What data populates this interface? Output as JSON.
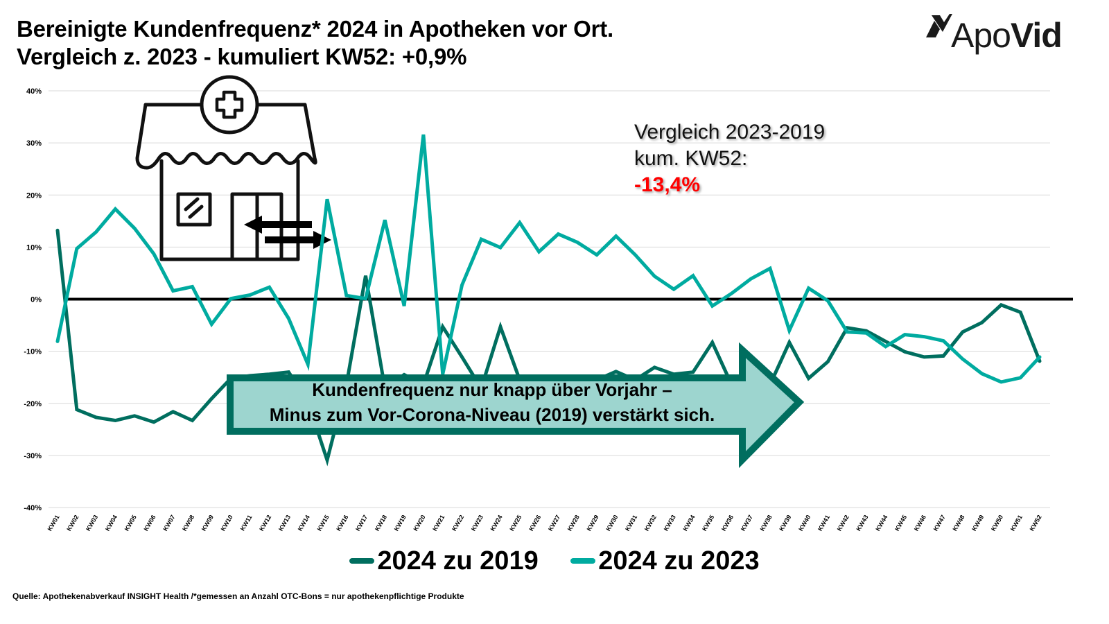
{
  "header": {
    "title_line1": "Bereinigte Kundenfrequenz* 2024 in Apotheken vor Ort.",
    "title_line2": "Vergleich z. 2023 - kumuliert KW52: +0,9%"
  },
  "logo": {
    "text_regular": "Apo",
    "text_bold": "Vid",
    "icon": "apovid-logo-icon"
  },
  "annotation": {
    "line1": "Vergleich 2023-2019",
    "line2": "kum. KW52:",
    "value": "-13,4%",
    "value_color": "#ff0000"
  },
  "banner": {
    "line1": "Kundenfrequenz nur knapp über Vorjahr –",
    "line2": "Minus zum Vor-Corona-Niveau (2019) verstärkt sich.",
    "fill_color": "#9dd5cf",
    "border_color": "#006e5f"
  },
  "illustration": {
    "icon": "pharmacy-storefront-icon"
  },
  "footer": {
    "source": "Quelle: Apothekenabverkauf INSIGHT Health /*gemessen an Anzahl OTC-Bons = nur apothekenpflichtige Produkte"
  },
  "chart_data": {
    "type": "line",
    "title": "Bereinigte Kundenfrequenz* 2024 in Apotheken vor Ort.",
    "xlabel": "",
    "ylabel": "",
    "ylim": [
      -40,
      40
    ],
    "yticks": [
      40,
      30,
      20,
      10,
      0,
      -10,
      -20,
      -30,
      -40
    ],
    "ytick_labels": [
      "40%",
      "30%",
      "20%",
      "10%",
      "0%",
      "-10%",
      "-20%",
      "-30%",
      "-40%"
    ],
    "grid": true,
    "legend_position": "bottom",
    "x": [
      "KW01",
      "KW02",
      "KW03",
      "KW04",
      "KW05",
      "KW06",
      "KW07",
      "KW08",
      "KW09",
      "KW10",
      "KW11",
      "KW12",
      "KW13",
      "KW14",
      "KW15",
      "KW16",
      "KW17",
      "KW18",
      "KW19",
      "KW20",
      "KW21",
      "KW22",
      "KW23",
      "KW24",
      "KW25",
      "KW26",
      "KW27",
      "KW28",
      "KW29",
      "KW30",
      "KW31",
      "KW32",
      "KW33",
      "KW34",
      "KW35",
      "KW36",
      "KW37",
      "KW38",
      "KW39",
      "KW40",
      "KW41",
      "KW42",
      "KW43",
      "KW44",
      "KW45",
      "KW46",
      "KW47",
      "KW48",
      "KW49",
      "KW50",
      "KW51",
      "KW52"
    ],
    "series": [
      {
        "name": "2024 zu 2019",
        "color": "#006e5f",
        "values": [
          13.2,
          -21.2,
          -22.7,
          -23.3,
          -22.4,
          -23.6,
          -21.6,
          -23.3,
          -19.1,
          -15.2,
          -14.7,
          -14.4,
          -14.0,
          -19.7,
          -30.9,
          -16.4,
          4.5,
          -17.1,
          -14.5,
          -16.4,
          -5.3,
          -11.1,
          -17.1,
          -5.3,
          -15.5,
          -15.5,
          -15.5,
          -15.5,
          -15.5,
          -13.9,
          -15.5,
          -13.1,
          -14.4,
          -14.0,
          -8.3,
          -16.4,
          -16.4,
          -16.4,
          -8.3,
          -15.2,
          -12.0,
          -5.5,
          -6.1,
          -8.1,
          -10.1,
          -11.1,
          -10.9,
          -6.3,
          -4.5,
          -1.1,
          -2.5,
          -11.9
        ]
      },
      {
        "name": "2024 zu 2023",
        "color": "#00aba0",
        "values": [
          -8.1,
          9.7,
          12.9,
          17.3,
          13.6,
          8.7,
          1.6,
          2.4,
          -4.8,
          0.1,
          0.8,
          2.3,
          -3.7,
          -12.5,
          19.2,
          0.7,
          0.1,
          15.2,
          -1.3,
          31.6,
          -14.4,
          2.7,
          11.5,
          9.9,
          14.7,
          9.1,
          12.5,
          10.9,
          8.5,
          12.1,
          8.5,
          4.4,
          1.9,
          4.5,
          -1.3,
          1.1,
          3.9,
          5.9,
          -6.0,
          2.1,
          -0.3,
          -6.3,
          -6.5,
          -9.1,
          -6.8,
          -7.2,
          -8.0,
          -11.5,
          -14.3,
          -15.9,
          -15.1,
          -11.1
        ]
      }
    ]
  }
}
